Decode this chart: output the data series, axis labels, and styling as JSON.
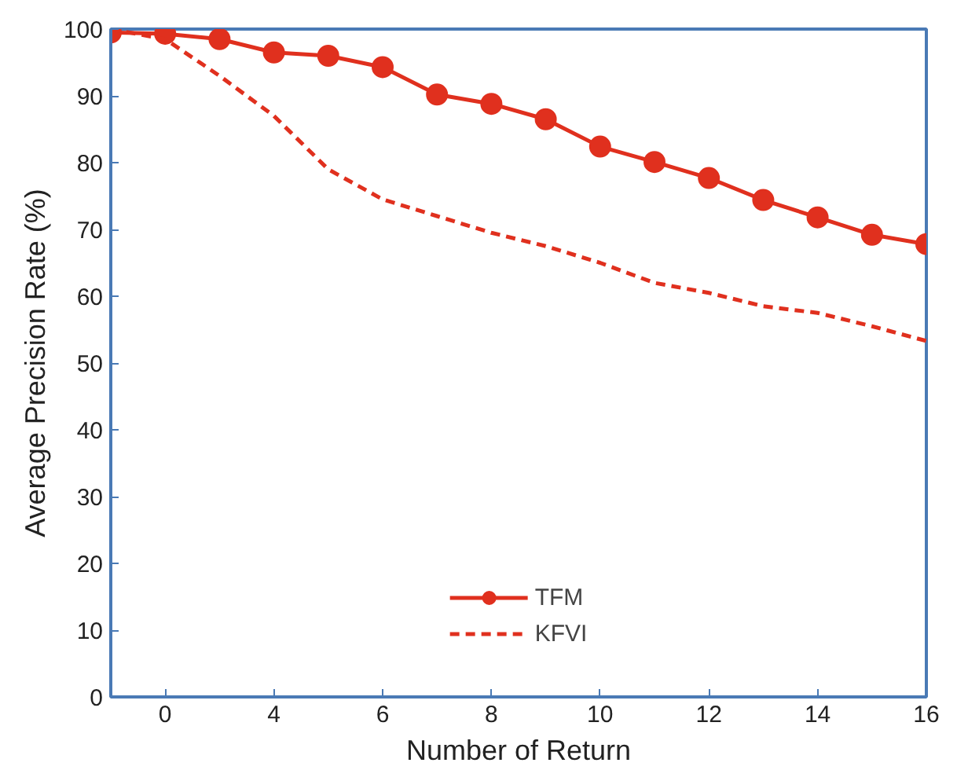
{
  "chart_data": {
    "type": "line",
    "xlabel": "Number of Return",
    "ylabel": "Average Precision Rate (%)",
    "categories": [
      null,
      "0",
      null,
      "4",
      null,
      "6",
      null,
      "8",
      null,
      "10",
      null,
      "12",
      null,
      "14",
      null,
      "16"
    ],
    "ylim": [
      0,
      100
    ],
    "yticks": [
      0,
      10,
      20,
      30,
      40,
      50,
      60,
      70,
      80,
      90,
      100
    ],
    "series": [
      {
        "name": "TFM",
        "color": "#e0301e",
        "marker": "circle",
        "line_style": "solid",
        "values": [
          99.5,
          99.3,
          98.5,
          96.5,
          96,
          94.3,
          90.2,
          88.8,
          86.5,
          82.4,
          80.1,
          77.7,
          74.4,
          71.8,
          69.2,
          67.8
        ]
      },
      {
        "name": "KFVI",
        "color": "#e0301e",
        "marker": "none",
        "line_style": "dashed",
        "values": [
          100,
          98.5,
          93,
          87,
          79,
          74.5,
          72,
          69.5,
          67.5,
          65,
          62,
          60.5,
          58.5,
          57.5,
          55.5,
          53.3
        ]
      }
    ],
    "grid": false,
    "legend": "bottom"
  }
}
